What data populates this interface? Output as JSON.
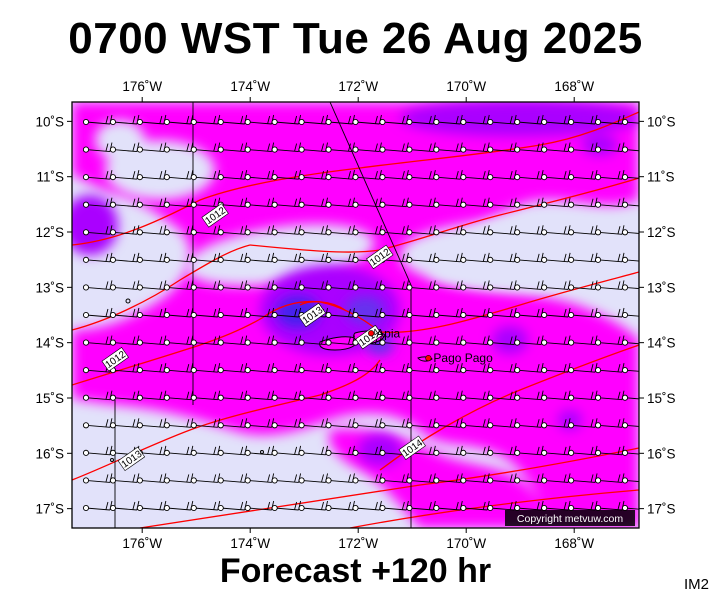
{
  "header": {
    "title": "0700 WST Tue 26 Aug 2025"
  },
  "footer": {
    "forecast_label": "Forecast +120 hr",
    "product_code": "IM2"
  },
  "map": {
    "lon_range": [
      -177.3,
      -166.8
    ],
    "lat_range": [
      -17.35,
      -9.65
    ],
    "lon_ticks": [
      {
        "lon": -176,
        "label": "176˚W"
      },
      {
        "lon": -174,
        "label": "174˚W"
      },
      {
        "lon": -172,
        "label": "172˚W"
      },
      {
        "lon": -170,
        "label": "170˚W"
      },
      {
        "lon": -168,
        "label": "168˚W"
      }
    ],
    "lat_ticks": [
      {
        "lat": -10,
        "label": "10˚S"
      },
      {
        "lat": -11,
        "label": "11˚S"
      },
      {
        "lat": -12,
        "label": "12˚S"
      },
      {
        "lat": -13,
        "label": "13˚S"
      },
      {
        "lat": -14,
        "label": "14˚S"
      },
      {
        "lat": -15,
        "label": "15˚S"
      },
      {
        "lat": -16,
        "label": "16˚S"
      },
      {
        "lat": -17,
        "label": "17˚S"
      }
    ],
    "places": [
      {
        "name": "Apia",
        "lon": -171.76,
        "lat": -13.83
      },
      {
        "name": "Pago Pago",
        "lon": -170.7,
        "lat": -14.28
      }
    ],
    "isobar_labels": [
      {
        "text": "1012",
        "lon": -174.65,
        "lat": -11.7
      },
      {
        "text": "1012",
        "lon": -171.6,
        "lat": -12.45
      },
      {
        "text": "1012",
        "lon": -176.5,
        "lat": -14.3
      },
      {
        "text": "1013",
        "lon": -172.85,
        "lat": -13.5
      },
      {
        "text": "1013",
        "lon": -176.2,
        "lat": -16.1
      },
      {
        "text": "1014",
        "lon": -171.0,
        "lat": -15.9
      },
      {
        "text": "1014",
        "lon": -171.8,
        "lat": -13.9
      }
    ],
    "copyright": "Copyright metvuw.com",
    "colors": {
      "low": "#e2e2fa",
      "mid": "#ff00ff",
      "high": "#aa00ff",
      "core": "#5533ee",
      "isobar": "#ff0000",
      "grid": "#000000"
    }
  }
}
